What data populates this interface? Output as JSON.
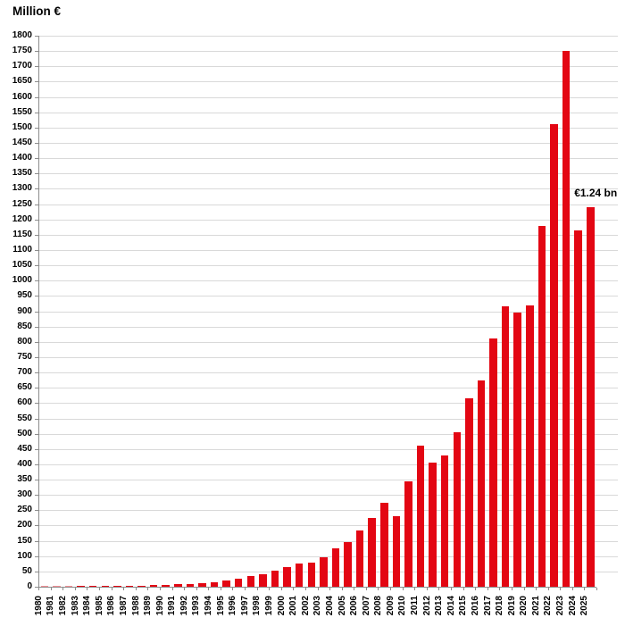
{
  "title": "Million €",
  "annotation": {
    "text": "€1.24 bn",
    "target_year": "2025"
  },
  "colors": {
    "bar": "#e30613",
    "grid": "#d9d9d9",
    "axis": "#8c8c8c",
    "text": "#000000",
    "background": "#ffffff"
  },
  "chart_data": {
    "type": "bar",
    "title": "Million €",
    "ylabel": "Million €",
    "xlabel": "",
    "ylim": [
      0,
      1800
    ],
    "ytick_step": 50,
    "grid": true,
    "legend": "none",
    "categories": [
      "1980",
      "1981",
      "1982",
      "1983",
      "1984",
      "1985",
      "1986",
      "1987",
      "1988",
      "1989",
      "1990",
      "1991",
      "1992",
      "1993",
      "1994",
      "1995",
      "1996",
      "1997",
      "1998",
      "1999",
      "2000",
      "2001",
      "2002",
      "2003",
      "2004",
      "2005",
      "2006",
      "2007",
      "2008",
      "2009",
      "2010",
      "2011",
      "2012",
      "2013",
      "2014",
      "2015",
      "2016",
      "2017",
      "2018",
      "2019",
      "2020",
      "2021",
      "2022",
      "2023",
      "2024",
      "2025"
    ],
    "values": [
      0.5,
      0.7,
      1,
      1.5,
      2,
      2.5,
      3,
      3.5,
      4,
      5,
      6,
      8,
      10,
      13,
      16,
      21,
      27,
      35,
      42,
      52,
      65,
      76,
      79,
      95,
      125,
      145,
      185,
      225,
      275,
      230,
      345,
      460,
      405,
      430,
      505,
      615,
      675,
      810,
      915,
      895,
      920,
      1180,
      1510,
      1750,
      1165,
      1240
    ],
    "annotations": [
      {
        "year": "2025",
        "value": 1240,
        "label": "€1.24 bn"
      }
    ]
  }
}
